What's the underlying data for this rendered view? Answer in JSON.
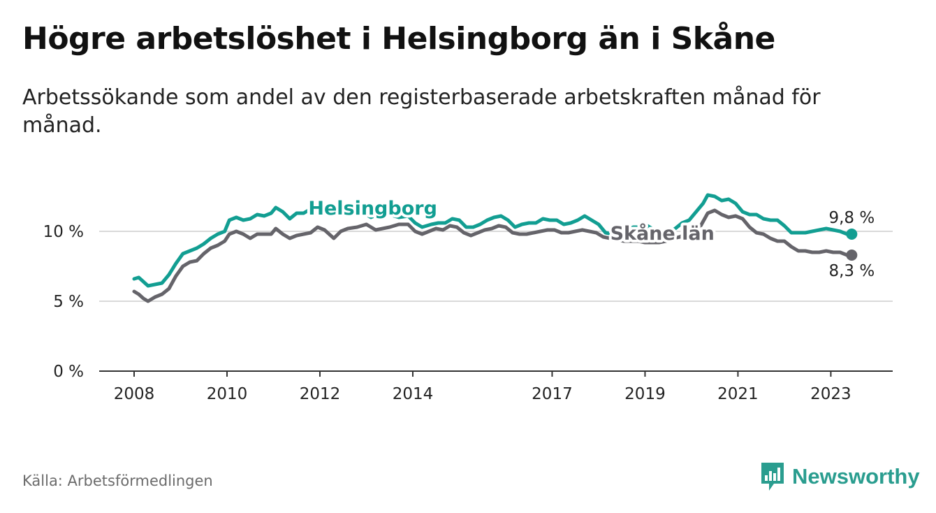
{
  "title": "Högre arbetslöshet i Helsingborg än i Skåne",
  "subtitle": "Arbetssökande som andel av den registerbaserade arbetskraften månad för månad.",
  "source": "Källa: Arbetsförmedlingen",
  "brand": {
    "name": "Newsworthy",
    "icon": "newsworthy-logo-icon"
  },
  "colors": {
    "helsingborg": "#129e92",
    "skane": "#65646a",
    "grid": "#d9d9d9",
    "axis": "#333333"
  },
  "chart_data": {
    "type": "line",
    "title": "Högre arbetslöshet i Helsingborg än i Skåne",
    "xlabel": "",
    "ylabel": "",
    "ylim": [
      0,
      15
    ],
    "xlim": [
      2008.0,
      2023.55
    ],
    "grid": true,
    "y_ticks": [
      {
        "value": 0,
        "label": "0 %"
      },
      {
        "value": 5,
        "label": "5 %"
      },
      {
        "value": 10,
        "label": "10 %"
      }
    ],
    "x_ticks": [
      {
        "value": 2008,
        "label": "2008"
      },
      {
        "value": 2010,
        "label": "2010"
      },
      {
        "value": 2012,
        "label": "2012"
      },
      {
        "value": 2014,
        "label": "2014"
      },
      {
        "value": 2017,
        "label": "2017"
      },
      {
        "value": 2019,
        "label": "2019"
      },
      {
        "value": 2021,
        "label": "2021"
      },
      {
        "value": 2023,
        "label": "2023"
      }
    ],
    "series": [
      {
        "name": "Helsingborg",
        "color_key": "helsingborg",
        "end_label": "9,8 %",
        "points": [
          [
            2008.0,
            6.6
          ],
          [
            2008.1,
            6.7
          ],
          [
            2008.2,
            6.4
          ],
          [
            2008.3,
            6.1
          ],
          [
            2008.45,
            6.2
          ],
          [
            2008.6,
            6.3
          ],
          [
            2008.75,
            6.9
          ],
          [
            2008.9,
            7.7
          ],
          [
            2009.05,
            8.4
          ],
          [
            2009.2,
            8.6
          ],
          [
            2009.35,
            8.8
          ],
          [
            2009.5,
            9.1
          ],
          [
            2009.65,
            9.5
          ],
          [
            2009.8,
            9.8
          ],
          [
            2009.95,
            10.0
          ],
          [
            2010.05,
            10.8
          ],
          [
            2010.2,
            11.0
          ],
          [
            2010.35,
            10.8
          ],
          [
            2010.5,
            10.9
          ],
          [
            2010.65,
            11.2
          ],
          [
            2010.8,
            11.1
          ],
          [
            2010.95,
            11.3
          ],
          [
            2011.05,
            11.7
          ],
          [
            2011.2,
            11.4
          ],
          [
            2011.35,
            10.9
          ],
          [
            2011.5,
            11.3
          ],
          [
            2011.65,
            11.3
          ],
          [
            2011.8,
            11.6
          ],
          [
            2011.95,
            11.8
          ],
          [
            2012.1,
            11.5
          ],
          [
            2012.3,
            11.2
          ],
          [
            2012.5,
            11.3
          ],
          [
            2012.7,
            11.2
          ],
          [
            2012.9,
            11.4
          ],
          [
            2013.1,
            11.0
          ],
          [
            2013.3,
            11.3
          ],
          [
            2013.5,
            11.2
          ],
          [
            2013.7,
            11.0
          ],
          [
            2013.9,
            11.1
          ],
          [
            2014.05,
            10.6
          ],
          [
            2014.2,
            10.3
          ],
          [
            2014.4,
            10.5
          ],
          [
            2014.55,
            10.6
          ],
          [
            2014.7,
            10.6
          ],
          [
            2014.85,
            10.9
          ],
          [
            2015.0,
            10.8
          ],
          [
            2015.15,
            10.3
          ],
          [
            2015.3,
            10.3
          ],
          [
            2015.45,
            10.5
          ],
          [
            2015.6,
            10.8
          ],
          [
            2015.75,
            11.0
          ],
          [
            2015.9,
            11.1
          ],
          [
            2016.05,
            10.8
          ],
          [
            2016.2,
            10.3
          ],
          [
            2016.35,
            10.5
          ],
          [
            2016.5,
            10.6
          ],
          [
            2016.65,
            10.6
          ],
          [
            2016.8,
            10.9
          ],
          [
            2016.95,
            10.8
          ],
          [
            2017.1,
            10.8
          ],
          [
            2017.25,
            10.5
          ],
          [
            2017.4,
            10.6
          ],
          [
            2017.55,
            10.8
          ],
          [
            2017.7,
            11.1
          ],
          [
            2017.85,
            10.8
          ],
          [
            2018.0,
            10.5
          ],
          [
            2018.15,
            9.9
          ],
          [
            2018.3,
            9.8
          ],
          [
            2018.45,
            10.0
          ],
          [
            2018.6,
            10.1
          ],
          [
            2018.75,
            10.3
          ],
          [
            2018.9,
            10.3
          ],
          [
            2019.05,
            10.4
          ],
          [
            2019.2,
            10.1
          ],
          [
            2019.35,
            10.0
          ],
          [
            2019.5,
            9.9
          ],
          [
            2019.65,
            10.2
          ],
          [
            2019.8,
            10.6
          ],
          [
            2019.95,
            10.8
          ],
          [
            2020.1,
            11.4
          ],
          [
            2020.25,
            12.0
          ],
          [
            2020.35,
            12.6
          ],
          [
            2020.5,
            12.5
          ],
          [
            2020.65,
            12.2
          ],
          [
            2020.8,
            12.3
          ],
          [
            2020.95,
            12.0
          ],
          [
            2021.1,
            11.4
          ],
          [
            2021.25,
            11.2
          ],
          [
            2021.4,
            11.2
          ],
          [
            2021.55,
            10.9
          ],
          [
            2021.7,
            10.8
          ],
          [
            2021.85,
            10.8
          ],
          [
            2022.0,
            10.4
          ],
          [
            2022.15,
            9.9
          ],
          [
            2022.3,
            9.9
          ],
          [
            2022.45,
            9.9
          ],
          [
            2022.6,
            10.0
          ],
          [
            2022.75,
            10.1
          ],
          [
            2022.9,
            10.2
          ],
          [
            2023.05,
            10.1
          ],
          [
            2023.2,
            10.0
          ],
          [
            2023.35,
            9.8
          ],
          [
            2023.45,
            9.8
          ]
        ]
      },
      {
        "name": "Skåne län",
        "color_key": "skane",
        "end_label": "8,3 %",
        "points": [
          [
            2008.0,
            5.7
          ],
          [
            2008.1,
            5.5
          ],
          [
            2008.2,
            5.2
          ],
          [
            2008.3,
            5.0
          ],
          [
            2008.45,
            5.3
          ],
          [
            2008.6,
            5.5
          ],
          [
            2008.75,
            5.9
          ],
          [
            2008.9,
            6.8
          ],
          [
            2009.05,
            7.5
          ],
          [
            2009.2,
            7.8
          ],
          [
            2009.35,
            7.9
          ],
          [
            2009.5,
            8.4
          ],
          [
            2009.65,
            8.8
          ],
          [
            2009.8,
            9.0
          ],
          [
            2009.95,
            9.3
          ],
          [
            2010.05,
            9.8
          ],
          [
            2010.2,
            10.0
          ],
          [
            2010.35,
            9.8
          ],
          [
            2010.5,
            9.5
          ],
          [
            2010.65,
            9.8
          ],
          [
            2010.8,
            9.8
          ],
          [
            2010.95,
            9.8
          ],
          [
            2011.05,
            10.2
          ],
          [
            2011.2,
            9.8
          ],
          [
            2011.35,
            9.5
          ],
          [
            2011.5,
            9.7
          ],
          [
            2011.65,
            9.8
          ],
          [
            2011.8,
            9.9
          ],
          [
            2011.95,
            10.3
          ],
          [
            2012.1,
            10.1
          ],
          [
            2012.3,
            9.5
          ],
          [
            2012.45,
            10.0
          ],
          [
            2012.6,
            10.2
          ],
          [
            2012.8,
            10.3
          ],
          [
            2013.0,
            10.5
          ],
          [
            2013.2,
            10.1
          ],
          [
            2013.35,
            10.2
          ],
          [
            2013.5,
            10.3
          ],
          [
            2013.7,
            10.5
          ],
          [
            2013.9,
            10.5
          ],
          [
            2014.05,
            10.0
          ],
          [
            2014.2,
            9.8
          ],
          [
            2014.35,
            10.0
          ],
          [
            2014.5,
            10.2
          ],
          [
            2014.65,
            10.1
          ],
          [
            2014.8,
            10.4
          ],
          [
            2014.95,
            10.3
          ],
          [
            2015.1,
            9.9
          ],
          [
            2015.25,
            9.7
          ],
          [
            2015.4,
            9.9
          ],
          [
            2015.55,
            10.1
          ],
          [
            2015.7,
            10.2
          ],
          [
            2015.85,
            10.4
          ],
          [
            2016.0,
            10.3
          ],
          [
            2016.15,
            9.9
          ],
          [
            2016.3,
            9.8
          ],
          [
            2016.45,
            9.8
          ],
          [
            2016.6,
            9.9
          ],
          [
            2016.75,
            10.0
          ],
          [
            2016.9,
            10.1
          ],
          [
            2017.05,
            10.1
          ],
          [
            2017.2,
            9.9
          ],
          [
            2017.35,
            9.9
          ],
          [
            2017.5,
            10.0
          ],
          [
            2017.65,
            10.1
          ],
          [
            2017.8,
            10.0
          ],
          [
            2017.95,
            9.9
          ],
          [
            2018.1,
            9.6
          ],
          [
            2018.25,
            9.5
          ],
          [
            2018.4,
            9.4
          ],
          [
            2018.55,
            9.3
          ],
          [
            2018.7,
            9.3
          ],
          [
            2018.85,
            9.3
          ],
          [
            2019.0,
            9.2
          ],
          [
            2019.15,
            9.2
          ],
          [
            2019.3,
            9.2
          ],
          [
            2019.45,
            9.3
          ],
          [
            2019.6,
            9.5
          ],
          [
            2019.75,
            9.6
          ],
          [
            2019.9,
            9.9
          ],
          [
            2020.05,
            9.8
          ],
          [
            2020.2,
            10.4
          ],
          [
            2020.35,
            11.3
          ],
          [
            2020.5,
            11.5
          ],
          [
            2020.65,
            11.2
          ],
          [
            2020.8,
            11.0
          ],
          [
            2020.95,
            11.1
          ],
          [
            2021.1,
            10.9
          ],
          [
            2021.25,
            10.3
          ],
          [
            2021.4,
            9.9
          ],
          [
            2021.55,
            9.8
          ],
          [
            2021.7,
            9.5
          ],
          [
            2021.85,
            9.3
          ],
          [
            2022.0,
            9.3
          ],
          [
            2022.15,
            8.9
          ],
          [
            2022.3,
            8.6
          ],
          [
            2022.45,
            8.6
          ],
          [
            2022.6,
            8.5
          ],
          [
            2022.75,
            8.5
          ],
          [
            2022.9,
            8.6
          ],
          [
            2023.05,
            8.5
          ],
          [
            2023.2,
            8.5
          ],
          [
            2023.35,
            8.3
          ],
          [
            2023.45,
            8.3
          ]
        ]
      }
    ],
    "series_labels": [
      {
        "text": "Helsingborg",
        "series": 0,
        "anchor_x": 2011.75,
        "anchor_y": 11.2
      },
      {
        "text": "Skåne län",
        "series": 1,
        "anchor_x": 2018.25,
        "anchor_y": 9.4
      }
    ]
  }
}
